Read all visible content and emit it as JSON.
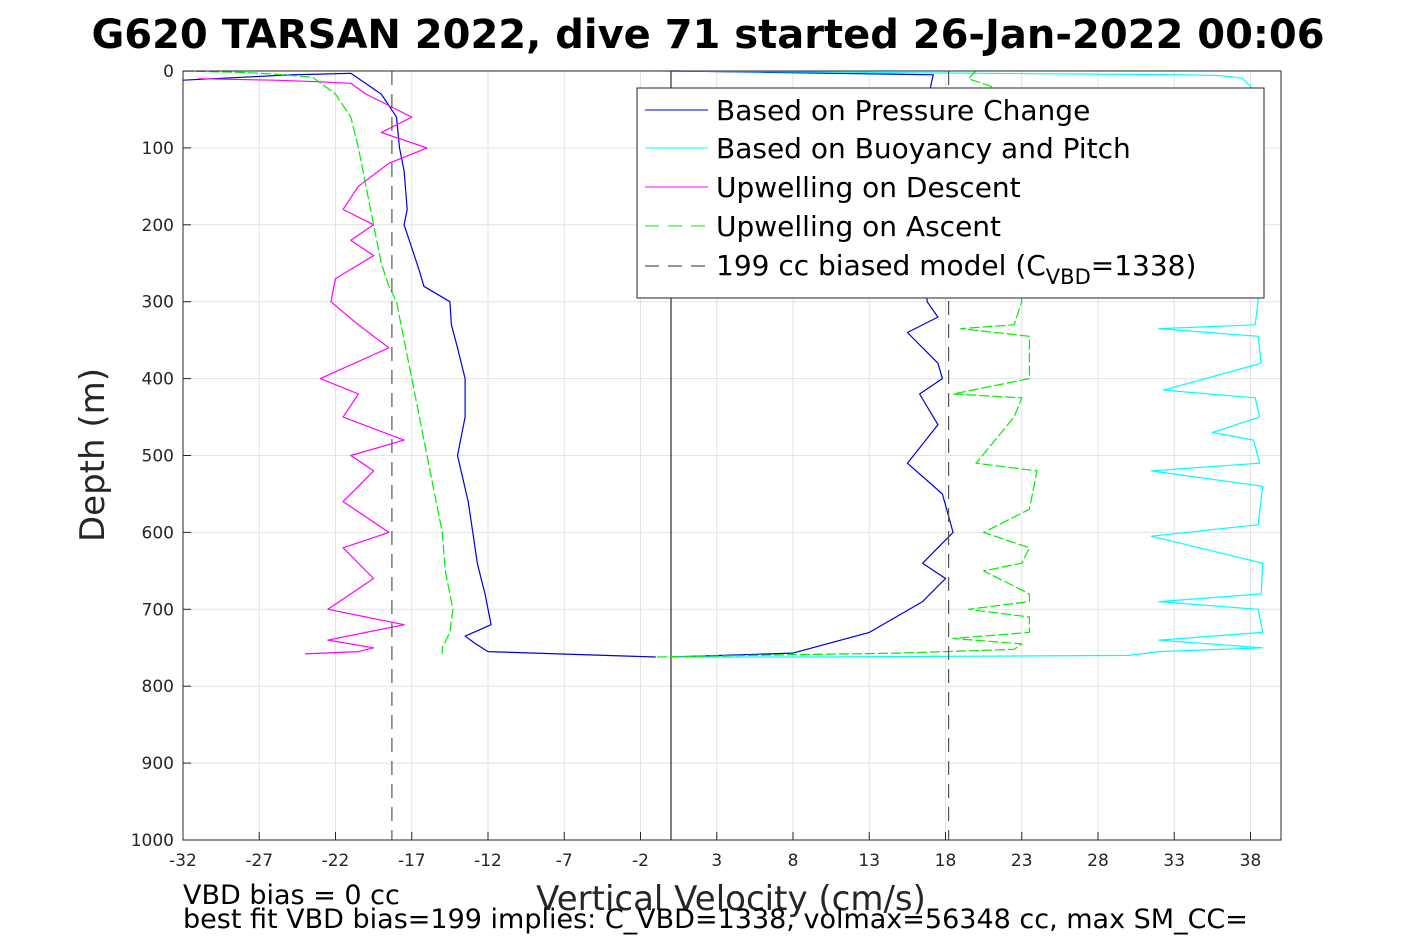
{
  "chart_data": {
    "type": "line",
    "title": "G620 TARSAN 2022, dive 71 started 26-Jan-2022 00:06",
    "xlabel": "Vertical Velocity (cm/s)",
    "ylabel": "Depth (m)",
    "xlim": [
      -32,
      40
    ],
    "ylim": [
      0,
      1000
    ],
    "y_reversed": true,
    "grid": true,
    "xticks": [
      -32,
      -27,
      -22,
      -17,
      -12,
      -7,
      -2,
      3,
      8,
      13,
      18,
      23,
      28,
      33,
      38
    ],
    "yticks": [
      0,
      100,
      200,
      300,
      400,
      500,
      600,
      700,
      800,
      900,
      1000
    ],
    "legend_position": "top-right",
    "legend": {
      "pressure": "Based on Pressure Change",
      "buoyancy": "Based on Buoyancy and Pitch",
      "up_desc": "Upwelling on Descent",
      "up_asc": "Upwelling on Ascent",
      "model_prefix": "199 cc biased model (C",
      "model_sub": "VBD",
      "model_suffix": "=1338)"
    },
    "colors": {
      "pressure": "#0000dd",
      "buoyancy": "#00ffff",
      "up_desc": "#ff00ff",
      "up_asc": "#00ee00",
      "model": "#555555"
    },
    "zero_line_x": 0,
    "series": [
      {
        "key": "pressure",
        "name": "Based on Pressure Change",
        "branch": "descent",
        "x": [
          -32,
          -30,
          -28,
          -26,
          -25,
          -23,
          -21,
          -19,
          -18,
          -17.8,
          -17.5,
          -17.3,
          -17.5,
          -17,
          -16.5,
          -16.2,
          -14.5,
          -14.4,
          -14,
          -13.5,
          -13.5,
          -14,
          -13.3,
          -13,
          -12.7,
          -12.2,
          -11.8,
          -13.5,
          -12.8,
          -12,
          -1
        ],
        "y": [
          12,
          10,
          8,
          6,
          5,
          4,
          3,
          30,
          60,
          100,
          130,
          180,
          200,
          230,
          260,
          280,
          300,
          330,
          360,
          400,
          450,
          500,
          560,
          600,
          640,
          680,
          720,
          735,
          745,
          755,
          762
        ]
      },
      {
        "key": "pressure",
        "name": "Based on Pressure Change",
        "branch": "ascent",
        "x": [
          0,
          0.5,
          17.2,
          16.8,
          16.6,
          16.4,
          16.8,
          17.5,
          15.5,
          17.5,
          17.8,
          16.3,
          17.5,
          15.5,
          17.8,
          18.5,
          16.5,
          18,
          16.5,
          13,
          8,
          0
        ],
        "y": [
          0,
          0,
          5,
          40,
          100,
          200,
          300,
          320,
          340,
          380,
          400,
          420,
          460,
          510,
          550,
          600,
          640,
          660,
          690,
          730,
          757,
          762
        ]
      },
      {
        "key": "buoyancy",
        "name": "Based on Buoyancy and Pitch",
        "x": [
          -0.5,
          34,
          36,
          37,
          37.5,
          38,
          38.5,
          38.3,
          32,
          38.5,
          38.7,
          32.3,
          38.3,
          38.6,
          35.5,
          38.2,
          38.6,
          31.5,
          38.8,
          38.5,
          31.5,
          38.8,
          38.7,
          32,
          38.5,
          38.8,
          32,
          38.8,
          32,
          30,
          20,
          10,
          0
        ],
        "y": [
          0,
          5,
          6,
          8,
          10,
          20,
          300,
          330,
          335,
          345,
          380,
          415,
          425,
          450,
          470,
          480,
          510,
          520,
          540,
          590,
          605,
          640,
          680,
          690,
          700,
          730,
          740,
          750,
          755,
          760,
          761,
          762,
          762
        ]
      },
      {
        "key": "up_desc",
        "name": "Upwelling on Descent",
        "x": [
          -31,
          -26,
          -23,
          -21,
          -20,
          -17,
          -19,
          -16,
          -18.5,
          -20.5,
          -21.5,
          -19.5,
          -21,
          -19.5,
          -22,
          -22.3,
          -20.5,
          -18.5,
          -23,
          -20.5,
          -21.5,
          -17.5,
          -21,
          -19.5,
          -21.5,
          -18.5,
          -21.5,
          -19.5,
          -22.5,
          -17.5,
          -22.5,
          -19.5,
          -20.5,
          -24
        ],
        "y": [
          10,
          12,
          14,
          16,
          30,
          60,
          80,
          100,
          120,
          150,
          180,
          200,
          220,
          240,
          270,
          300,
          330,
          360,
          400,
          420,
          450,
          480,
          500,
          520,
          560,
          600,
          620,
          660,
          700,
          720,
          740,
          750,
          755,
          758
        ]
      },
      {
        "key": "up_asc",
        "name": "Upwelling on Ascent",
        "branch": "descent",
        "x": [
          -32,
          -28,
          -26,
          -23.5,
          -22,
          -21,
          -20.5,
          -20,
          -19.5,
          -19,
          -18.5,
          -18,
          -17.5,
          -17,
          -16.5,
          -16,
          -15.5,
          -15,
          -14.8,
          -14.5,
          -14.3,
          -14.5,
          -15,
          -15
        ],
        "y": [
          0,
          2,
          4,
          8,
          30,
          60,
          100,
          150,
          200,
          250,
          280,
          300,
          350,
          400,
          450,
          500,
          550,
          600,
          650,
          680,
          700,
          730,
          750,
          758
        ]
      },
      {
        "key": "up_asc",
        "name": "Upwelling on Ascent",
        "branch": "ascent",
        "x": [
          20,
          19.5,
          21,
          22,
          23,
          22.5,
          19,
          23.5,
          23.5,
          18.5,
          23,
          22.5,
          20,
          24,
          23.5,
          20.5,
          23.5,
          23,
          20.5,
          23.5,
          23.5,
          19.5,
          23.5,
          23.5,
          18.5,
          23,
          22.5,
          15,
          5,
          -1
        ],
        "y": [
          0,
          10,
          20,
          100,
          300,
          330,
          335,
          345,
          400,
          420,
          425,
          450,
          510,
          520,
          570,
          600,
          620,
          640,
          650,
          680,
          690,
          700,
          710,
          730,
          738,
          745,
          752,
          757,
          760,
          762
        ]
      },
      {
        "key": "model",
        "name": "199 cc biased model",
        "x": [
          -18.3,
          -18.3
        ],
        "y": [
          0,
          1000
        ],
        "dashed": true
      },
      {
        "key": "model",
        "name": "199 cc biased model",
        "x": [
          18.2,
          18.2
        ],
        "y": [
          0,
          1000
        ],
        "dashed": true
      }
    ]
  },
  "notes": {
    "bias": "VBD bias = 0 cc",
    "best_fit": "best fit VBD bias=199 implies: C_VBD=1338, volmax=56348 cc, max SM_CC="
  }
}
